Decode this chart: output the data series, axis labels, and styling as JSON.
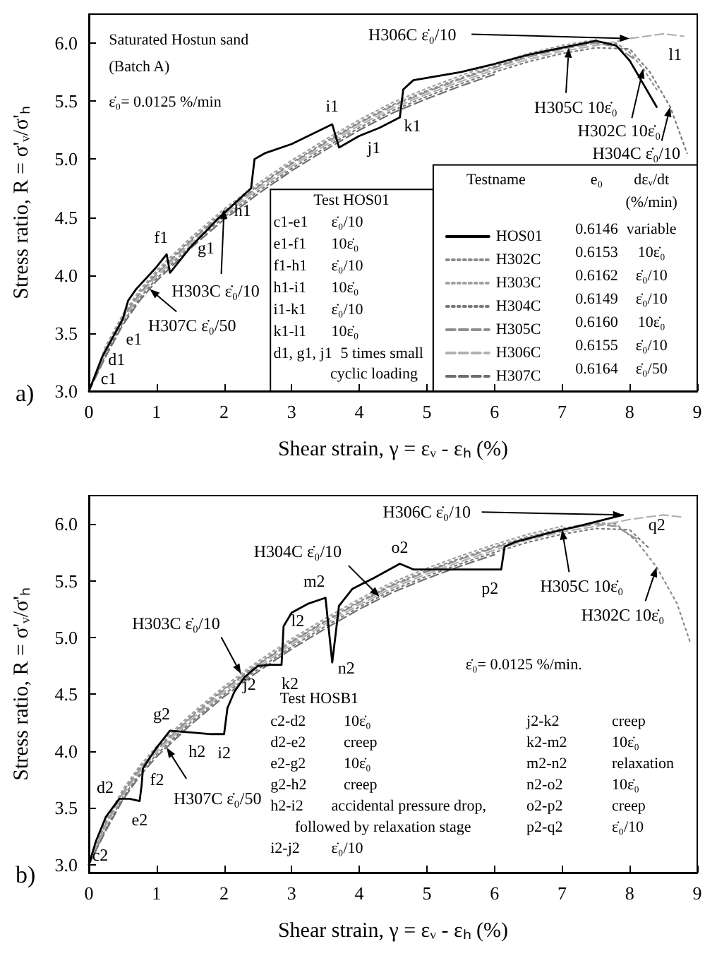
{
  "chart_data": [
    {
      "type": "line",
      "title": "a)",
      "xlabel": "Shear strain, γ = εᵥ - εₕ (%)",
      "ylabel": "Stress ratio, R = σ'ᵥ/σ'ₕ",
      "xlim": [
        0,
        9
      ],
      "xticks": [
        0,
        1,
        2,
        3,
        4,
        5,
        6,
        7,
        8,
        9
      ],
      "ylim": [
        3,
        6.25
      ],
      "yticks": [
        {
          "value": 3,
          "label": "3.0"
        },
        3.5,
        {
          "value": 4,
          "label": "4.0"
        },
        4.5,
        {
          "value": 5,
          "label": "5.0"
        },
        5.5,
        {
          "value": 6,
          "label": "6.0"
        }
      ],
      "legend": "bottom right",
      "series": [
        {
          "name": "HOS01",
          "color": "#000000",
          "line_style": "solid",
          "x": [
            0,
            0.2,
            0.5,
            0.58,
            0.7,
            1.0,
            1.15,
            1.2,
            1.5,
            1.9,
            2.4,
            2.45,
            2.6,
            3.0,
            3.6,
            3.7,
            4.0,
            4.3,
            4.6,
            4.65,
            4.8,
            5.5,
            6.0,
            6.5,
            7.0,
            7.5,
            7.8,
            8.0,
            8.2,
            8.4
          ],
          "values": [
            3.0,
            3.3,
            3.62,
            3.78,
            3.88,
            4.07,
            4.18,
            4.02,
            4.24,
            4.48,
            4.75,
            5.0,
            5.05,
            5.13,
            5.3,
            5.1,
            5.2,
            5.27,
            5.36,
            5.6,
            5.68,
            5.75,
            5.82,
            5.9,
            5.96,
            6.02,
            5.98,
            5.85,
            5.65,
            5.45
          ]
        },
        {
          "name": "H302C",
          "color": "#8c8c8c",
          "line_style": "dotted",
          "x": [
            0,
            0.25,
            0.5,
            0.75,
            1,
            1.5,
            2,
            2.5,
            3,
            3.5,
            4,
            4.5,
            5,
            5.5,
            6,
            6.5,
            7,
            7.5,
            7.8,
            8.0,
            8.2,
            8.4
          ],
          "values": [
            3.0,
            3.37,
            3.64,
            3.85,
            4.02,
            4.3,
            4.55,
            4.77,
            4.97,
            5.15,
            5.32,
            5.47,
            5.59,
            5.7,
            5.8,
            5.89,
            5.96,
            6.01,
            6.0,
            5.92,
            5.78,
            5.6
          ]
        },
        {
          "name": "H303C",
          "color": "#a0a0a0",
          "line_style": "dotted",
          "x": [
            0,
            0.25,
            0.5,
            0.75,
            1,
            1.5,
            2,
            2.5,
            3,
            3.5,
            4,
            4.5,
            5,
            5.5,
            6,
            6.5,
            7,
            7.5
          ],
          "values": [
            3.0,
            3.39,
            3.66,
            3.87,
            4.04,
            4.32,
            4.57,
            4.79,
            4.99,
            5.17,
            5.34,
            5.49,
            5.61,
            5.72,
            5.82,
            5.91,
            5.98,
            6.03
          ]
        },
        {
          "name": "H304C",
          "color": "#7a7a7a",
          "line_style": "dotted",
          "x": [
            0,
            0.25,
            0.5,
            0.75,
            1,
            1.5,
            2,
            2.5,
            3,
            3.5,
            4,
            4.5,
            5,
            5.5,
            6,
            6.5,
            7,
            7.5,
            8.0,
            8.3,
            8.6,
            8.85
          ],
          "values": [
            3.0,
            3.32,
            3.59,
            3.8,
            3.97,
            4.25,
            4.5,
            4.72,
            4.92,
            5.1,
            5.27,
            5.42,
            5.54,
            5.65,
            5.75,
            5.84,
            5.91,
            5.96,
            5.95,
            5.75,
            5.45,
            5.05
          ]
        },
        {
          "name": "H305C",
          "color": "#909090",
          "line_style": "dashed",
          "x": [
            0,
            0.25,
            0.5,
            0.75,
            1,
            1.5,
            2,
            2.5,
            3,
            3.5,
            4,
            4.5,
            5,
            5.5,
            6,
            6.5,
            7,
            7.5,
            7.8,
            8.1
          ],
          "values": [
            3.0,
            3.36,
            3.63,
            3.84,
            4.01,
            4.29,
            4.54,
            4.76,
            4.96,
            5.14,
            5.31,
            5.46,
            5.58,
            5.69,
            5.79,
            5.88,
            5.95,
            6.0,
            5.97,
            5.85
          ]
        },
        {
          "name": "H306C",
          "color": "#b0b0b0",
          "line_style": "dashed",
          "x": [
            0,
            0.25,
            0.5,
            0.75,
            1,
            1.5,
            2,
            2.5,
            3,
            3.5,
            4,
            4.5,
            5,
            5.5,
            6,
            6.5,
            7,
            7.5,
            8.0,
            8.5,
            8.8
          ],
          "values": [
            3.0,
            3.34,
            3.61,
            3.82,
            3.99,
            4.27,
            4.52,
            4.74,
            4.94,
            5.12,
            5.29,
            5.44,
            5.56,
            5.67,
            5.77,
            5.86,
            5.93,
            5.98,
            6.04,
            6.08,
            6.06
          ]
        },
        {
          "name": "H307C",
          "color": "#6e6e6e",
          "line_style": "dashed",
          "x": [
            0,
            0.25,
            0.5,
            0.75,
            1,
            1.5,
            2,
            2.5,
            3,
            3.5,
            4,
            4.5,
            5,
            5.5,
            6
          ],
          "values": [
            3.0,
            3.3,
            3.57,
            3.78,
            3.95,
            4.23,
            4.48,
            4.7,
            4.9,
            5.08,
            5.25,
            5.4,
            5.52,
            5.63,
            5.73
          ]
        }
      ],
      "annotations": [
        "Saturated Hostun sand",
        "(Batch A)",
        "ε̇₀= 0.0125 %/min",
        {
          "text": "c1",
          "x": 0,
          "y": 3.0
        },
        {
          "text": "d1",
          "x": 0.2,
          "y": 3.3
        },
        {
          "text": "e1",
          "x": 0.5,
          "y": 3.62
        },
        {
          "text": "f1",
          "x": 1.15,
          "y": 4.18
        },
        {
          "text": "g1",
          "x": 1.9,
          "y": 4.48
        },
        {
          "text": "h1",
          "x": 2.4,
          "y": 4.75
        },
        {
          "text": "i1",
          "x": 3.6,
          "y": 5.3
        },
        {
          "text": "j1",
          "x": 4.3,
          "y": 5.27
        },
        {
          "text": "k1",
          "x": 4.6,
          "y": 5.36
        },
        {
          "text": "l1",
          "x": 8.8,
          "y": 6.06
        },
        {
          "text": "H307C ε̇₀/50",
          "x": 0.9,
          "y": 3.88
        },
        {
          "text": "H303C ε̇₀/10",
          "x": 2.0,
          "y": 4.57
        },
        {
          "text": "H306C ε̇₀/10",
          "x": 8.0,
          "y": 6.04
        },
        {
          "text": "H305C 10ε̇₀",
          "x": 7.1,
          "y": 5.96
        },
        {
          "text": "H302C 10ε̇₀",
          "x": 8.2,
          "y": 5.78
        },
        {
          "text": "H304C ε̇₀/10",
          "x": 8.6,
          "y": 5.45
        },
        "Test HOS01",
        "c1-e1",
        "ε̇₀/10",
        "e1-f1",
        "10ε̇₀",
        "f1-h1",
        "ε̇₀/10",
        "h1-i1",
        "10ε̇₀",
        "i1-k1",
        "ε̇₀/10",
        "k1-l1",
        "10ε̇₀",
        "d1, g1, j1",
        "5 times small",
        "cyclic loading",
        "Testname",
        "e₀",
        "dεᵥ/dt",
        "(%/min)",
        "0.6146",
        "variable",
        "0.6153",
        "10ε̇₀",
        "0.6162",
        "ε̇₀/10",
        "0.6149",
        "ε̇₀/10",
        "0.6160",
        "10ε̇₀",
        "0.6155",
        "ε̇₀/10",
        "0.6164",
        "ε̇₀/50"
      ]
    },
    {
      "type": "line",
      "title": "b)",
      "xlabel": "Shear strain, γ = εᵥ - εₕ (%)",
      "ylabel": "Stress ratio, R = σ'ᵥ/σ'ₕ",
      "xlim": [
        0,
        9
      ],
      "xticks": [
        0,
        1,
        2,
        3,
        4,
        5,
        6,
        7,
        8,
        9
      ],
      "ylim": [
        2.93,
        6.25
      ],
      "yticks": [
        {
          "value": 3,
          "label": "3.0"
        },
        3.5,
        {
          "value": 4,
          "label": "4.0"
        },
        4.5,
        {
          "value": 5,
          "label": "5.0"
        },
        5.5,
        {
          "value": 6,
          "label": "6.0"
        }
      ],
      "series": [
        {
          "color": "#000000",
          "line_style": "solid",
          "x": [
            0,
            0.1,
            0.25,
            0.45,
            0.6,
            0.75,
            0.78,
            0.8,
            1.0,
            1.2,
            1.4,
            1.6,
            1.8,
            2.0,
            2.05,
            2.15,
            2.3,
            2.5,
            2.7,
            2.85,
            2.88,
            3.0,
            3.25,
            3.5,
            3.6,
            3.7,
            3.9,
            4.2,
            4.6,
            4.8,
            5.2,
            5.6,
            6.1,
            6.15,
            6.3,
            6.8,
            7.3,
            7.9
          ],
          "values": [
            3.0,
            3.2,
            3.42,
            3.58,
            3.58,
            3.56,
            3.7,
            3.85,
            4.03,
            4.18,
            4.17,
            4.16,
            4.15,
            4.15,
            4.38,
            4.52,
            4.65,
            4.75,
            4.76,
            4.76,
            5.1,
            5.22,
            5.3,
            5.35,
            4.78,
            5.28,
            5.43,
            5.52,
            5.65,
            5.6,
            5.6,
            5.6,
            5.6,
            5.8,
            5.84,
            5.92,
            5.99,
            6.08
          ]
        },
        {
          "color": "#8c8c8c",
          "line_style": "dotted",
          "x": [
            0,
            0.25,
            0.5,
            0.75,
            1,
            1.5,
            2,
            2.5,
            3,
            3.5,
            4,
            4.5,
            5,
            5.5,
            6,
            6.5,
            7,
            7.5,
            7.8,
            8.1,
            8.4,
            8.7,
            8.9
          ],
          "values": [
            3.0,
            3.37,
            3.64,
            3.85,
            4.02,
            4.3,
            4.55,
            4.77,
            4.97,
            5.15,
            5.32,
            5.47,
            5.59,
            5.7,
            5.8,
            5.89,
            5.96,
            6.01,
            6.0,
            5.85,
            5.62,
            5.3,
            4.95
          ]
        },
        {
          "color": "#a0a0a0",
          "line_style": "dotted",
          "x": [
            0,
            0.25,
            0.5,
            0.75,
            1,
            1.5,
            2,
            2.5,
            3,
            3.5,
            4,
            4.5,
            5,
            5.5,
            6,
            6.5,
            7
          ],
          "values": [
            3.0,
            3.39,
            3.66,
            3.87,
            4.04,
            4.32,
            4.57,
            4.79,
            4.99,
            5.17,
            5.34,
            5.49,
            5.61,
            5.72,
            5.82,
            5.91,
            5.98
          ]
        },
        {
          "color": "#7a7a7a",
          "line_style": "dotted",
          "x": [
            0,
            0.25,
            0.5,
            0.75,
            1,
            1.5,
            2,
            2.5,
            3,
            3.5,
            4,
            4.5,
            5,
            5.5,
            6,
            6.5,
            7,
            7.5,
            8.0,
            8.3
          ],
          "values": [
            3.0,
            3.32,
            3.59,
            3.8,
            3.97,
            4.25,
            4.5,
            4.72,
            4.92,
            5.1,
            5.27,
            5.42,
            5.54,
            5.65,
            5.75,
            5.84,
            5.91,
            5.96,
            5.95,
            5.78
          ]
        },
        {
          "color": "#909090",
          "line_style": "dashed",
          "x": [
            0,
            0.25,
            0.5,
            0.75,
            1,
            1.5,
            2,
            2.5,
            3,
            3.5,
            4,
            4.5,
            5,
            5.5,
            6,
            6.5,
            7,
            7.5,
            7.8,
            8.1
          ],
          "values": [
            3.0,
            3.36,
            3.63,
            3.84,
            4.01,
            4.29,
            4.54,
            4.76,
            4.96,
            5.14,
            5.31,
            5.46,
            5.58,
            5.69,
            5.79,
            5.88,
            5.95,
            6.0,
            5.98,
            5.87
          ]
        },
        {
          "color": "#b0b0b0",
          "line_style": "dashed",
          "x": [
            0,
            0.25,
            0.5,
            0.75,
            1,
            1.5,
            2,
            2.5,
            3,
            3.5,
            4,
            4.5,
            5,
            5.5,
            6,
            6.5,
            7,
            7.5,
            8.0,
            8.5,
            8.8
          ],
          "values": [
            3.0,
            3.34,
            3.61,
            3.82,
            3.99,
            4.27,
            4.52,
            4.74,
            4.94,
            5.12,
            5.29,
            5.44,
            5.56,
            5.67,
            5.77,
            5.86,
            5.93,
            5.98,
            6.04,
            6.08,
            6.06
          ]
        },
        {
          "color": "#6e6e6e",
          "line_style": "dashed",
          "x": [
            0,
            0.25,
            0.5,
            0.75,
            1,
            1.5,
            2,
            2.5,
            3,
            3.5,
            4,
            4.5,
            5,
            5.5,
            6
          ],
          "values": [
            3.0,
            3.3,
            3.57,
            3.78,
            3.95,
            4.23,
            4.48,
            4.7,
            4.9,
            5.08,
            5.25,
            5.4,
            5.52,
            5.63,
            5.73
          ]
        }
      ],
      "annotations": [
        "ε̇₀= 0.0125 %/min.",
        {
          "text": "c2",
          "x": 0,
          "y": 3.0
        },
        {
          "text": "d2",
          "x": 0.45,
          "y": 3.58
        },
        {
          "text": "e2",
          "x": 0.75,
          "y": 3.56
        },
        {
          "text": "f2",
          "x": 0.8,
          "y": 3.85
        },
        {
          "text": "g2",
          "x": 1.2,
          "y": 4.18
        },
        {
          "text": "h2",
          "x": 1.6,
          "y": 4.16
        },
        {
          "text": "i2",
          "x": 2.0,
          "y": 4.15
        },
        {
          "text": "j2",
          "x": 2.5,
          "y": 4.75
        },
        {
          "text": "k2",
          "x": 2.85,
          "y": 4.76
        },
        {
          "text": "l2",
          "x": 2.88,
          "y": 5.1
        },
        {
          "text": "m2",
          "x": 3.5,
          "y": 5.35
        },
        {
          "text": "n2",
          "x": 3.6,
          "y": 4.78
        },
        {
          "text": "o2",
          "x": 4.6,
          "y": 5.65
        },
        {
          "text": "p2",
          "x": 6.1,
          "y": 5.6
        },
        {
          "text": "q2",
          "x": 7.9,
          "y": 6.08
        },
        {
          "text": "H303C ε̇₀/10",
          "x": 2.25,
          "y": 4.68
        },
        {
          "text": "H304C ε̇₀/10",
          "x": 4.3,
          "y": 5.36
        },
        {
          "text": "H306C ε̇₀/10",
          "x": 7.9,
          "y": 6.08
        },
        {
          "text": "H305C 10ε̇₀",
          "x": 7.0,
          "y": 5.95
        },
        {
          "text": "H302C 10ε̇₀",
          "x": 8.4,
          "y": 5.62
        },
        {
          "text": "H307C ε̇₀/50",
          "x": 1.15,
          "y": 4.03
        },
        "Test HOSB1",
        "c2-d2",
        "10ε̇₀",
        "d2-e2",
        "creep",
        "e2-g2",
        "10ε̇₀",
        "g2-h2",
        "creep",
        "h2-i2",
        "accidental pressure drop,",
        "followed by relaxation stage",
        "i2-j2",
        "ε̇₀/10",
        "j2-k2",
        "creep",
        "k2-m2",
        "10ε̇₀",
        "m2-n2",
        "relaxation",
        "n2-o2",
        "10ε̇₀",
        "o2-p2",
        "creep",
        "p2-q2",
        "ε̇₀/10"
      ]
    }
  ]
}
